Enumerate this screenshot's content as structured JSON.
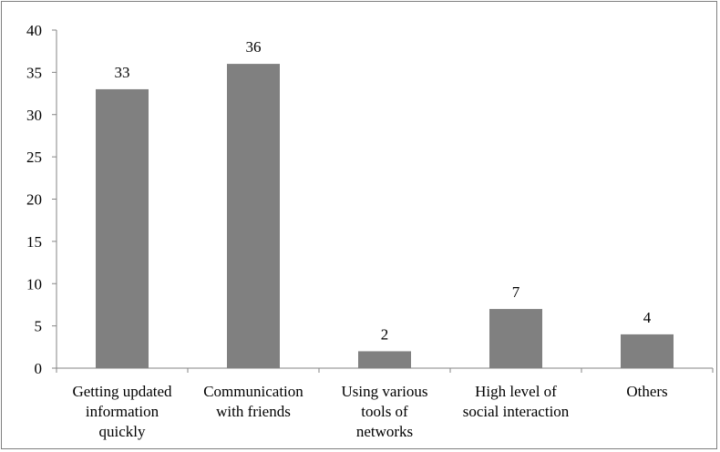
{
  "chart_data": {
    "type": "bar",
    "title": "",
    "xlabel": "",
    "ylabel": "",
    "ylim": [
      0,
      40
    ],
    "yticks": [
      0,
      5,
      10,
      15,
      20,
      25,
      30,
      35,
      40
    ],
    "grid": false,
    "categories": [
      [
        "Getting updated",
        "information",
        "quickly"
      ],
      [
        "Communication",
        "with friends"
      ],
      [
        "Using various",
        "tools of",
        "networks"
      ],
      [
        "High level of",
        "social interaction"
      ],
      [
        "Others"
      ]
    ],
    "values": [
      33,
      36,
      2,
      7,
      4
    ],
    "data_labels": [
      "33",
      "36",
      "2",
      "7",
      "4"
    ],
    "colors": {
      "bar": "#808080",
      "axis": "#868686",
      "border": "#7f7f7f"
    }
  }
}
